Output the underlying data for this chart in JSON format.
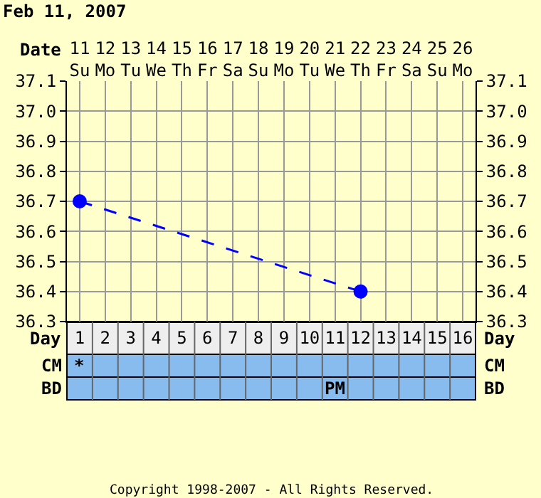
{
  "chart_data": {
    "type": "line",
    "title": "Feb 11, 2007",
    "xlabel": "Date",
    "x2label": "Day",
    "categories": [
      "11\nSu",
      "12\nMo",
      "13\nTu",
      "14\nWe",
      "15\nTh",
      "16\nFr",
      "17\nSa",
      "18\nSu",
      "19\nMo",
      "20\nTu",
      "21\nWe",
      "22\nTh",
      "23\nFr",
      "24\nSa",
      "25\nSu",
      "26\nMo"
    ],
    "x2lim": [
      0.5,
      16.5
    ],
    "x2ticks": [
      1,
      2,
      3,
      4,
      5,
      6,
      7,
      8,
      9,
      10,
      11,
      12,
      13,
      14,
      15,
      16
    ],
    "ylim": [
      36.3,
      37.1
    ],
    "yticks": [
      36.3,
      36.4,
      36.5,
      36.6,
      36.7,
      36.8,
      36.9,
      {
        "value": 37,
        "label": "37.0"
      },
      37.1
    ],
    "y2lim": [
      36.3,
      37.1
    ],
    "y2ticks": [
      36.3,
      36.4,
      36.5,
      36.6,
      36.7,
      36.8,
      36.9,
      {
        "value": 37,
        "label": "37.0"
      },
      37.1
    ],
    "series": [
      {
        "color": "#0000ff",
        "x": [
          "11\nSu",
          "22\nTh"
        ],
        "values": [
          36.7,
          36.4
        ]
      }
    ],
    "marker": "circle",
    "line_style": "dashed",
    "grid": true,
    "annotations": [
      "Copyright 1998-2007 - All Rights Reserved.",
      "CM",
      "BD",
      "*",
      "PM"
    ]
  }
}
